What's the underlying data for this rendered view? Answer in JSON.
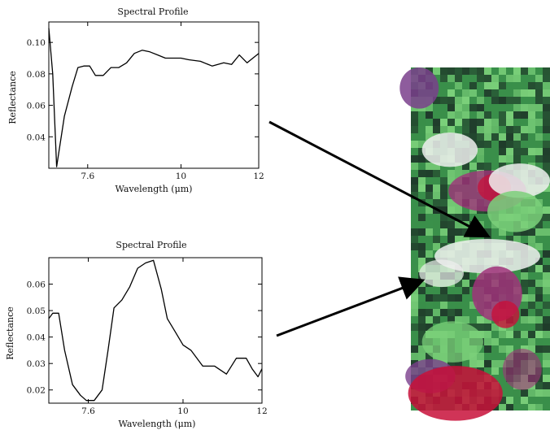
{
  "chart_data": [
    {
      "type": "line",
      "title": "Spectral Profile",
      "xlabel": "Wavelength (μm)",
      "ylabel": "Reflectance",
      "xlim": [
        6.6,
        12
      ],
      "ylim": [
        0.02,
        0.113
      ],
      "xticks": [
        7.6,
        10,
        12
      ],
      "xtick_labels": [
        "7.6",
        "10",
        "12"
      ],
      "yticks": [
        0.04,
        0.06,
        0.08,
        0.1
      ],
      "ytick_labels": [
        "0.04",
        "0.06",
        "0.08",
        "0.10"
      ],
      "grid": false,
      "series": [
        {
          "x": [
            6.6,
            6.7,
            6.8,
            7.0,
            7.2,
            7.35,
            7.5,
            7.65,
            7.8,
            8.0,
            8.2,
            8.4,
            8.6,
            8.8,
            9.0,
            9.2,
            9.4,
            9.6,
            9.8,
            10.0,
            10.2,
            10.5,
            10.8,
            11.1,
            11.3,
            11.5,
            11.7,
            11.85,
            12.0
          ],
          "y": [
            0.109,
            0.08,
            0.021,
            0.053,
            0.072,
            0.084,
            0.085,
            0.085,
            0.079,
            0.079,
            0.084,
            0.084,
            0.087,
            0.093,
            0.095,
            0.094,
            0.092,
            0.09,
            0.09,
            0.09,
            0.089,
            0.088,
            0.085,
            0.087,
            0.086,
            0.092,
            0.087,
            0.09,
            0.093
          ]
        }
      ]
    },
    {
      "type": "line",
      "title": "Spectral Profile",
      "xlabel": "Wavelength (μm)",
      "ylabel": "Reflectance",
      "xlim": [
        6.6,
        12
      ],
      "ylim": [
        0.015,
        0.07
      ],
      "xticks": [
        7.6,
        10,
        12
      ],
      "xtick_labels": [
        "7.6",
        "10",
        "12"
      ],
      "yticks": [
        0.02,
        0.03,
        0.04,
        0.05,
        0.06
      ],
      "ytick_labels": [
        "0.02",
        "0.03",
        "0.04",
        "0.05",
        "0.06"
      ],
      "grid": false,
      "series": [
        {
          "x": [
            6.6,
            6.7,
            6.85,
            7.0,
            7.2,
            7.4,
            7.55,
            7.75,
            7.95,
            8.1,
            8.25,
            8.45,
            8.65,
            8.85,
            9.05,
            9.25,
            9.45,
            9.6,
            9.8,
            10.0,
            10.2,
            10.5,
            10.8,
            11.1,
            11.35,
            11.6,
            11.75,
            11.9,
            12.0
          ],
          "y": [
            0.047,
            0.049,
            0.049,
            0.035,
            0.022,
            0.018,
            0.016,
            0.016,
            0.02,
            0.035,
            0.051,
            0.054,
            0.059,
            0.066,
            0.068,
            0.069,
            0.058,
            0.047,
            0.042,
            0.037,
            0.035,
            0.029,
            0.029,
            0.026,
            0.032,
            0.032,
            0.028,
            0.025,
            0.028
          ]
        }
      ]
    }
  ],
  "image_colors": {
    "vegetation": "#3a8f4a",
    "bright_vegetation": "#7bd07a",
    "dark": "#1f3a2a",
    "magenta": "#a0327a",
    "red": "#c8103a",
    "violet": "#7a3f8c",
    "white": "#eef0ee"
  }
}
